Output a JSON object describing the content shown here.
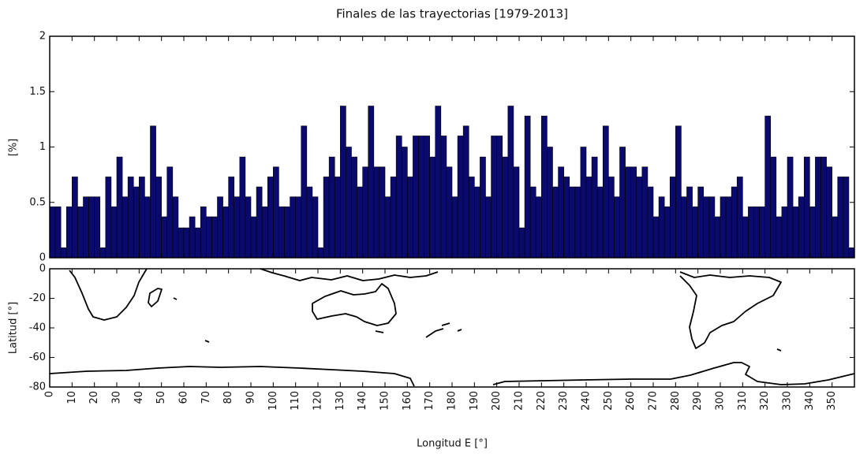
{
  "chart_data": [
    {
      "type": "histogram",
      "title": "Finales de las trayectorias [1979-2013]",
      "ylabel": "[%]",
      "color": "#0a0a6e",
      "bins": [
        0,
        2.5,
        5,
        7.5,
        10,
        12.5,
        15,
        17.5,
        20,
        22.5,
        25,
        27.5,
        30,
        32.5,
        35,
        37.5,
        40,
        42.5,
        45,
        47.5,
        50,
        52.5,
        55,
        57.5,
        60,
        62.5,
        65,
        67.5,
        70,
        72.5,
        75,
        77.5,
        80,
        82.5,
        85,
        87.5,
        90,
        92.5,
        95,
        97.5,
        100,
        102.5,
        105,
        107.5,
        110,
        112.5,
        115,
        117.5,
        120,
        122.5,
        125,
        127.5,
        130,
        132.5,
        135,
        137.5,
        140,
        142.5,
        145,
        147.5,
        150,
        152.5,
        155,
        157.5,
        160,
        162.5,
        165,
        167.5,
        170,
        172.5,
        175,
        177.5,
        180,
        182.5,
        185,
        187.5,
        190,
        192.5,
        195,
        197.5,
        200,
        202.5,
        205,
        207.5,
        210,
        212.5,
        215,
        217.5,
        220,
        222.5,
        225,
        227.5,
        230,
        232.5,
        235,
        237.5,
        240,
        242.5,
        245,
        247.5,
        250,
        252.5,
        255,
        257.5,
        260,
        262.5,
        265,
        267.5,
        270,
        272.5,
        275,
        277.5,
        280,
        282.5,
        285,
        287.5,
        290,
        292.5,
        295,
        297.5,
        300,
        302.5,
        305,
        307.5,
        310,
        312.5,
        315,
        317.5,
        320,
        322.5,
        325,
        327.5,
        330,
        332.5,
        335,
        337.5,
        340,
        342.5,
        345,
        347.5,
        350,
        352.5,
        355,
        357.5,
        360
      ],
      "values": [
        0.46,
        0.46,
        0.09,
        0.46,
        0.73,
        0.46,
        0.55,
        0.55,
        0.55,
        0.09,
        0.73,
        0.46,
        0.91,
        0.55,
        0.73,
        0.64,
        0.73,
        0.55,
        1.19,
        0.73,
        0.37,
        0.82,
        0.55,
        0.27,
        0.27,
        0.37,
        0.27,
        0.46,
        0.37,
        0.37,
        0.55,
        0.46,
        0.73,
        0.55,
        0.91,
        0.55,
        0.37,
        0.64,
        0.46,
        0.73,
        0.82,
        0.46,
        0.46,
        0.55,
        0.55,
        1.19,
        0.64,
        0.55,
        0.09,
        0.73,
        0.91,
        0.73,
        1.37,
        1.0,
        0.91,
        0.64,
        0.82,
        1.37,
        0.82,
        0.82,
        0.55,
        0.73,
        1.1,
        1.0,
        0.73,
        1.1,
        1.1,
        1.1,
        0.91,
        1.37,
        1.1,
        0.82,
        0.55,
        1.1,
        1.19,
        0.73,
        0.64,
        0.91,
        0.55,
        1.1,
        1.1,
        0.91,
        1.37,
        0.82,
        0.27,
        1.28,
        0.64,
        0.55,
        1.28,
        1.0,
        0.64,
        0.82,
        0.73,
        0.64,
        0.64,
        1.0,
        0.73,
        0.91,
        0.64,
        1.19,
        0.73,
        0.55,
        1.0,
        0.82,
        0.82,
        0.73,
        0.82,
        0.64,
        0.37,
        0.55,
        0.46,
        0.73,
        1.19,
        0.55,
        0.64,
        0.46,
        0.64,
        0.55,
        0.55,
        0.37,
        0.55,
        0.55,
        0.64,
        0.73,
        0.37,
        0.46,
        0.46,
        0.46,
        1.28,
        0.91,
        0.37,
        0.46,
        0.91,
        0.46,
        0.55,
        0.91,
        0.46,
        0.91,
        0.91,
        0.82,
        0.37,
        0.73,
        0.73,
        0.09
      ],
      "xlim": [
        0,
        360
      ],
      "ylim": [
        0,
        2
      ],
      "yticks": [
        0,
        0.5,
        1,
        1.5,
        2
      ]
    },
    {
      "type": "map",
      "xlabel": "Longitud E [°]",
      "ylabel": "Latitud [°]",
      "xlim": [
        0,
        360
      ],
      "xticks": [
        0,
        10,
        20,
        30,
        40,
        50,
        60,
        70,
        80,
        90,
        100,
        110,
        120,
        130,
        140,
        150,
        160,
        170,
        180,
        190,
        200,
        210,
        220,
        230,
        240,
        250,
        260,
        270,
        280,
        290,
        300,
        310,
        320,
        330,
        340,
        350
      ],
      "ylim": [
        -80,
        0
      ],
      "yticks": [
        0,
        -20,
        -40,
        -60,
        -80
      ]
    }
  ]
}
